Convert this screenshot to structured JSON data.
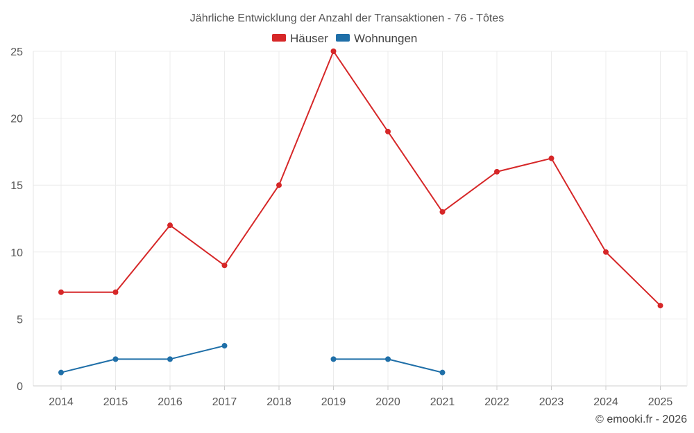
{
  "chart_data": {
    "type": "line",
    "title": "Jährliche Entwicklung der Anzahl der Transaktionen - 76 - Tôtes",
    "categories": [
      "2014",
      "2015",
      "2016",
      "2017",
      "2018",
      "2019",
      "2020",
      "2021",
      "2022",
      "2023",
      "2024",
      "2025"
    ],
    "series": [
      {
        "name": "Häuser",
        "color": "#d62728",
        "values": [
          7,
          7,
          12,
          9,
          15,
          25,
          19,
          13,
          16,
          17,
          10,
          6
        ]
      },
      {
        "name": "Wohnungen",
        "color": "#1f6fa8",
        "values": [
          1,
          2,
          2,
          3,
          null,
          2,
          2,
          1,
          null,
          null,
          null,
          null
        ]
      }
    ],
    "ylim": [
      0,
      25
    ],
    "yticks": [
      0,
      5,
      10,
      15,
      20,
      25
    ],
    "grid": true,
    "legend": "top-center",
    "xlabel": "",
    "ylabel": ""
  },
  "credit": "© emooki.fr - 2026"
}
